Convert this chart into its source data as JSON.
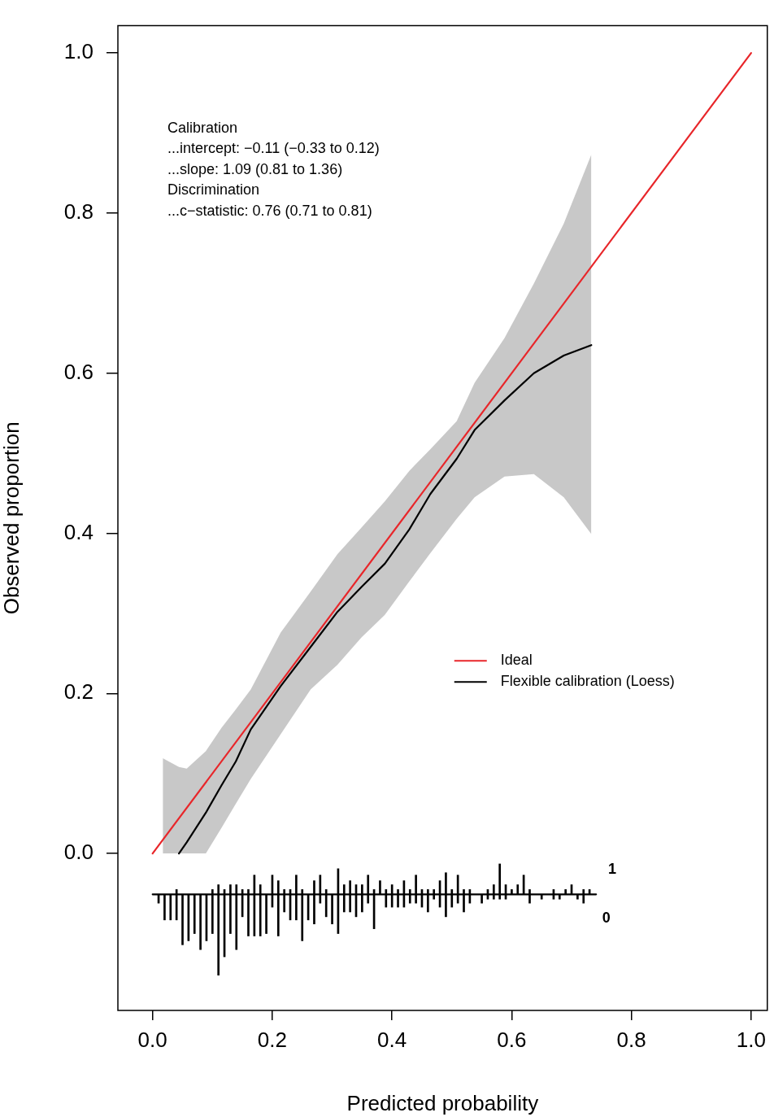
{
  "chart_data": {
    "type": "line",
    "xlabel": "Predicted probability",
    "ylabel": "Observed proportion",
    "xlim": [
      -0.058,
      1.027
    ],
    "ylim": [
      -0.196,
      1.034
    ],
    "xticks": [
      {
        "value": 0,
        "label": "0.0"
      },
      {
        "value": 0.2,
        "label": "0.2"
      },
      {
        "value": 0.4,
        "label": "0.4"
      },
      {
        "value": 0.6,
        "label": "0.6"
      },
      {
        "value": 0.8,
        "label": "0.8"
      },
      {
        "value": 1,
        "label": "1.0"
      }
    ],
    "yticks": [
      {
        "value": 0,
        "label": "0.0"
      },
      {
        "value": 0.2,
        "label": "0.2"
      },
      {
        "value": 0.4,
        "label": "0.4"
      },
      {
        "value": 0.6,
        "label": "0.6"
      },
      {
        "value": 0.8,
        "label": "0.8"
      },
      {
        "value": 1,
        "label": "1.0"
      }
    ],
    "legend": "right",
    "marker": "none",
    "annotations": [
      "Calibration",
      "...intercept: −0.11 (−0.33 to 0.12)",
      "...slope: 1.09 (0.81 to 1.36)",
      "Discrimination",
      "...c−statistic: 0.76 (0.71 to 0.81)"
    ],
    "series": [
      {
        "name": "Ideal",
        "color": "#e8262a",
        "x": [
          0,
          1
        ],
        "values": [
          0,
          1
        ]
      },
      {
        "name": "Flexible calibration (Loess)",
        "color": "#000000",
        "x": [
          0.017,
          0.044,
          0.057,
          0.089,
          0.115,
          0.139,
          0.164,
          0.214,
          0.264,
          0.309,
          0.349,
          0.388,
          0.429,
          0.464,
          0.508,
          0.538,
          0.588,
          0.637,
          0.687,
          0.733
        ],
        "values": [
          null,
          0,
          0.014,
          0.051,
          0.085,
          0.115,
          0.155,
          0.209,
          0.258,
          0.302,
          0.333,
          0.362,
          0.405,
          0.449,
          0.493,
          0.529,
          0.566,
          0.6,
          0.622,
          0.635
        ],
        "lower": [
          0,
          0,
          0,
          0,
          0.032,
          0.062,
          0.093,
          0.149,
          0.205,
          0.236,
          0.27,
          0.298,
          0.34,
          0.375,
          0.418,
          0.445,
          0.471,
          0.474,
          0.445,
          0.399
        ],
        "upper": [
          0.119,
          0.108,
          0.106,
          0.128,
          0.157,
          0.18,
          0.205,
          0.276,
          0.327,
          0.374,
          0.407,
          0.44,
          0.478,
          0.505,
          0.54,
          0.588,
          0.644,
          0.712,
          0.787,
          0.873
        ]
      },
      {
        "color": "#000000",
        "x": [
          0,
          0.741
        ],
        "values": [
          -0.051,
          -0.051
        ]
      },
      {
        "type": "bar",
        "name": "1",
        "color": "#000000",
        "x": [
          0.04,
          0.1,
          0.11,
          0.12,
          0.13,
          0.14,
          0.15,
          0.16,
          0.17,
          0.18,
          0.2,
          0.21,
          0.22,
          0.23,
          0.24,
          0.25,
          0.27,
          0.28,
          0.29,
          0.31,
          0.32,
          0.33,
          0.34,
          0.35,
          0.36,
          0.37,
          0.38,
          0.39,
          0.4,
          0.41,
          0.42,
          0.43,
          0.44,
          0.45,
          0.46,
          0.47,
          0.48,
          0.49,
          0.5,
          0.51,
          0.52,
          0.53,
          0.56,
          0.57,
          0.58,
          0.59,
          0.6,
          0.61,
          0.62,
          0.63,
          0.67,
          0.69,
          0.7,
          0.72,
          0.73
        ],
        "values": [
          0.006,
          0.006,
          0.012,
          0.006,
          0.012,
          0.012,
          0.006,
          0.006,
          0.024,
          0.012,
          0.024,
          0.017,
          0.006,
          0.006,
          0.024,
          0.006,
          0.017,
          0.024,
          0.006,
          0.032,
          0.012,
          0.017,
          0.012,
          0.012,
          0.024,
          0.006,
          0.017,
          0.006,
          0.012,
          0.006,
          0.017,
          0.006,
          0.024,
          0.006,
          0.006,
          0.006,
          0.017,
          0.027,
          0.006,
          0.024,
          0.006,
          0.006,
          0.006,
          0.012,
          0.038,
          0.012,
          0.006,
          0.012,
          0.024,
          0.006,
          0.006,
          0.006,
          0.012,
          0.006,
          0.006
        ],
        "base": [
          -0.051,
          -0.051,
          -0.051,
          -0.051,
          -0.051,
          -0.051,
          -0.051,
          -0.051,
          -0.051,
          -0.051,
          -0.051,
          -0.051,
          -0.051,
          -0.051,
          -0.051,
          -0.051,
          -0.051,
          -0.051,
          -0.051,
          -0.051,
          -0.051,
          -0.051,
          -0.051,
          -0.051,
          -0.051,
          -0.051,
          -0.051,
          -0.051,
          -0.051,
          -0.051,
          -0.051,
          -0.051,
          -0.051,
          -0.051,
          -0.051,
          -0.051,
          -0.051,
          -0.051,
          -0.051,
          -0.051,
          -0.051,
          -0.051,
          -0.051,
          -0.051,
          -0.051,
          -0.051,
          -0.051,
          -0.051,
          -0.051,
          -0.051,
          -0.051,
          -0.051,
          -0.051,
          -0.051,
          -0.051
        ]
      },
      {
        "type": "bar",
        "name": "0",
        "color": "#000000",
        "x": [
          0.01,
          0.02,
          0.03,
          0.04,
          0.05,
          0.06,
          0.07,
          0.08,
          0.09,
          0.1,
          0.11,
          0.12,
          0.13,
          0.14,
          0.15,
          0.16,
          0.17,
          0.18,
          0.19,
          0.2,
          0.21,
          0.22,
          0.23,
          0.24,
          0.25,
          0.26,
          0.27,
          0.28,
          0.29,
          0.3,
          0.31,
          0.32,
          0.33,
          0.34,
          0.35,
          0.36,
          0.37,
          0.39,
          0.4,
          0.41,
          0.42,
          0.43,
          0.44,
          0.45,
          0.46,
          0.47,
          0.48,
          0.49,
          0.5,
          0.51,
          0.52,
          0.53,
          0.55,
          0.56,
          0.57,
          0.58,
          0.59,
          0.63,
          0.65,
          0.67,
          0.68,
          0.71,
          0.72
        ],
        "values": [
          -0.011,
          -0.032,
          -0.032,
          -0.032,
          -0.063,
          -0.058,
          -0.049,
          -0.069,
          -0.058,
          -0.049,
          -0.101,
          -0.078,
          -0.049,
          -0.069,
          -0.028,
          -0.052,
          -0.052,
          -0.052,
          -0.049,
          -0.016,
          -0.052,
          -0.022,
          -0.032,
          -0.032,
          -0.058,
          -0.032,
          -0.037,
          -0.011,
          -0.028,
          -0.037,
          -0.049,
          -0.022,
          -0.022,
          -0.028,
          -0.022,
          -0.011,
          -0.043,
          -0.016,
          -0.016,
          -0.016,
          -0.016,
          -0.011,
          -0.011,
          -0.016,
          -0.022,
          -0.006,
          -0.016,
          -0.028,
          -0.016,
          -0.011,
          -0.022,
          -0.011,
          -0.011,
          -0.006,
          -0.006,
          -0.006,
          -0.006,
          -0.011,
          -0.006,
          -0.006,
          -0.006,
          -0.006,
          -0.011
        ],
        "base": [
          -0.051,
          -0.051,
          -0.051,
          -0.051,
          -0.051,
          -0.051,
          -0.051,
          -0.051,
          -0.051,
          -0.051,
          -0.051,
          -0.051,
          -0.051,
          -0.051,
          -0.051,
          -0.051,
          -0.051,
          -0.051,
          -0.051,
          -0.051,
          -0.051,
          -0.051,
          -0.051,
          -0.051,
          -0.051,
          -0.051,
          -0.051,
          -0.051,
          -0.051,
          -0.051,
          -0.051,
          -0.051,
          -0.051,
          -0.051,
          -0.051,
          -0.051,
          -0.051,
          -0.051,
          -0.051,
          -0.051,
          -0.051,
          -0.051,
          -0.051,
          -0.051,
          -0.051,
          -0.051,
          -0.051,
          -0.051,
          -0.051,
          -0.051,
          -0.051,
          -0.051,
          -0.051,
          -0.051,
          -0.051,
          -0.051,
          -0.051,
          -0.051,
          -0.051,
          -0.051,
          -0.051,
          -0.051,
          -0.051
        ]
      }
    ]
  }
}
